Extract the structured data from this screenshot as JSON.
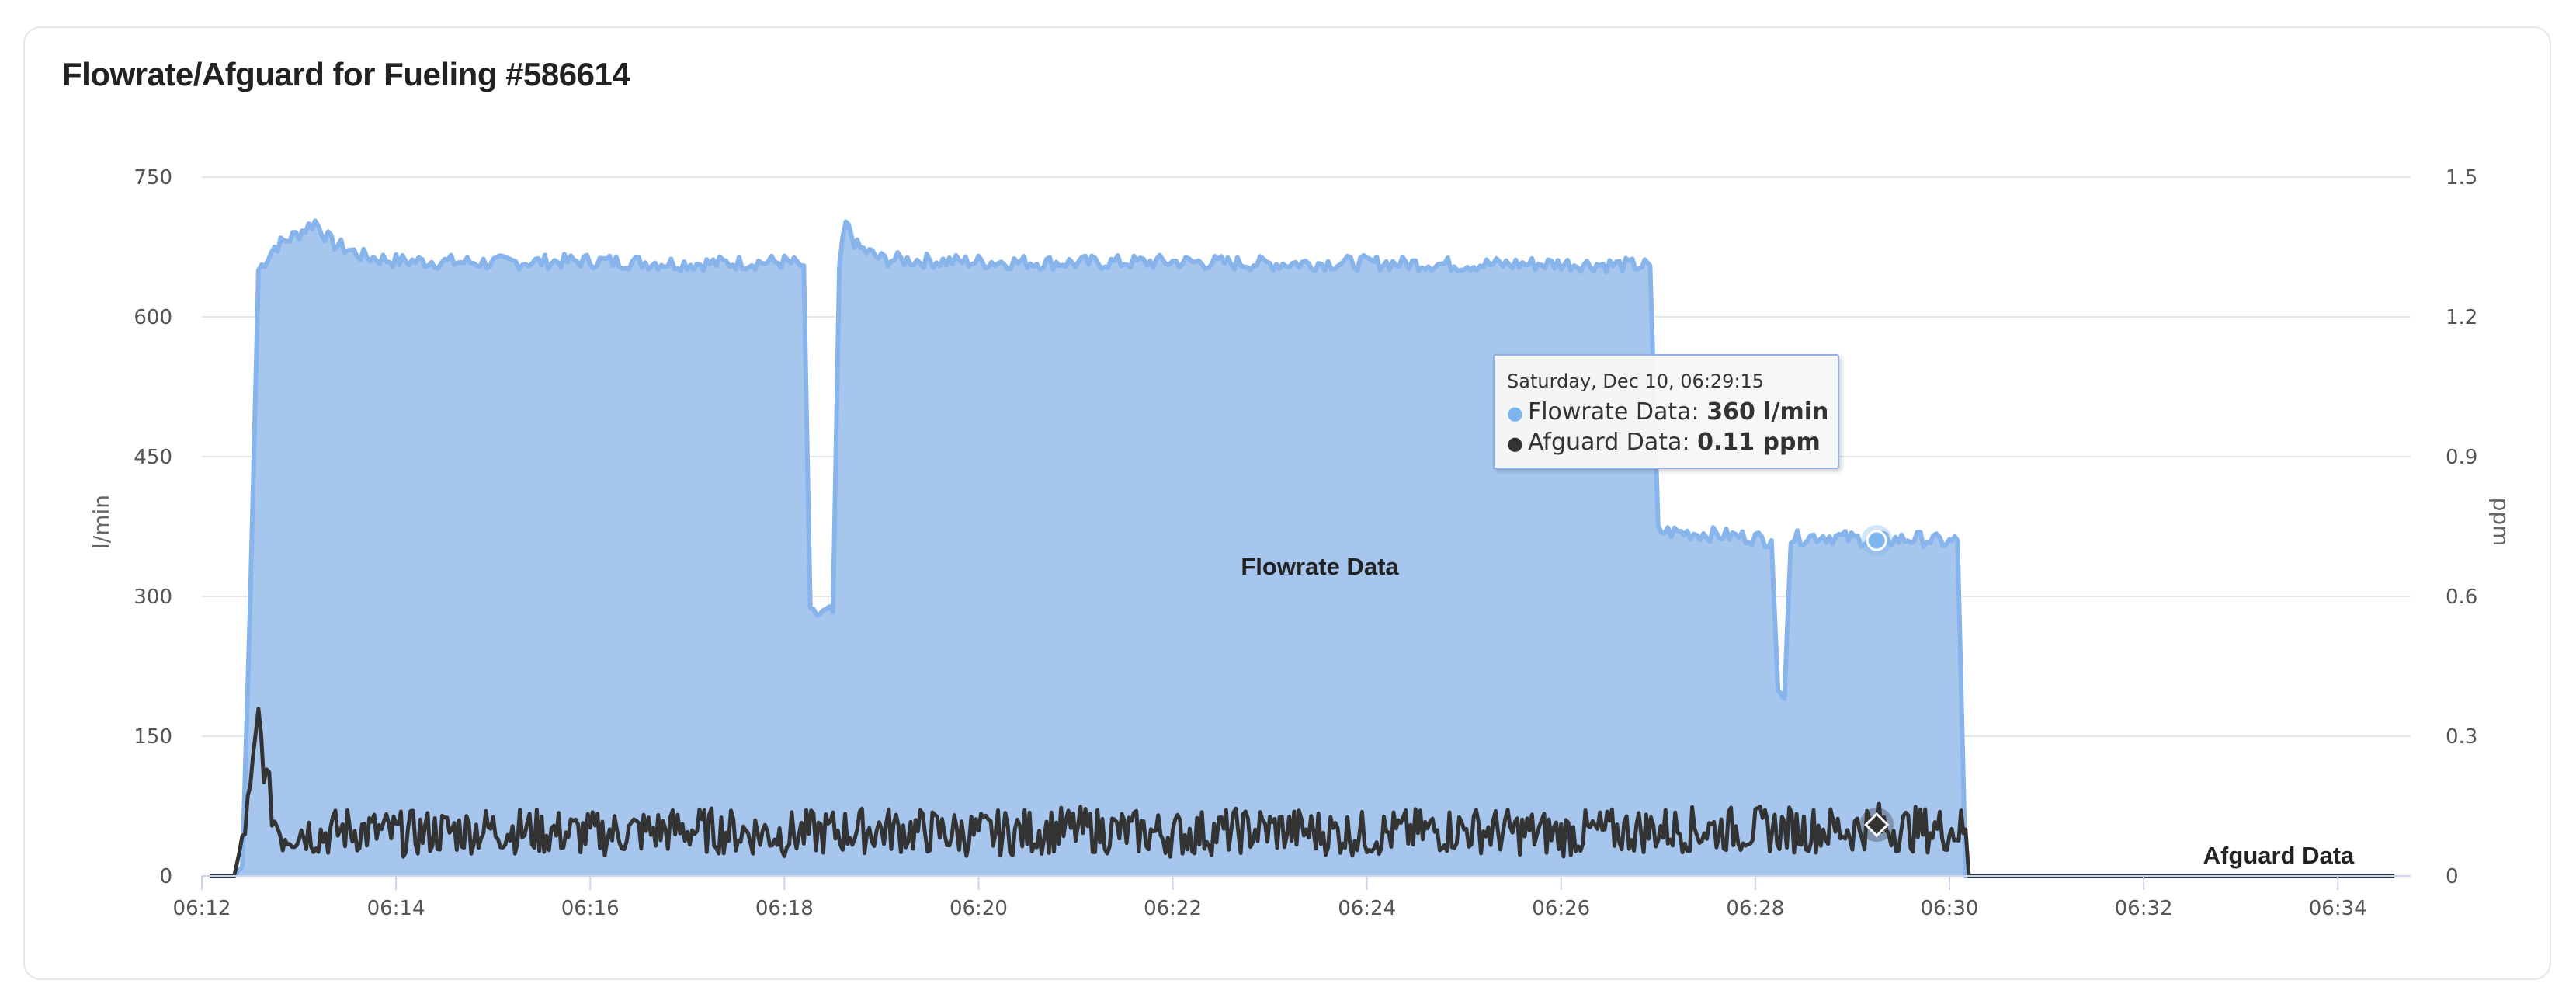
{
  "title": "Flowrate/Afguard for Fueling #586614",
  "tooltip": {
    "header": "Saturday, Dec 10, 06:29:15",
    "rows": [
      {
        "name": "Flowrate Data",
        "value": "360 l/min",
        "color": "#7cb5ec"
      },
      {
        "name": "Afguard Data",
        "value": "0.11 ppm",
        "color": "#333333"
      }
    ]
  },
  "colors": {
    "flowrate_line": "#88b4ec",
    "flowrate_fill": "#a6c6ee",
    "afguard_line": "#333333",
    "grid": "#e6e6e6"
  },
  "chart_data": {
    "type": "area",
    "x_ticks": [
      "06:12",
      "06:14",
      "06:16",
      "06:18",
      "06:20",
      "06:22",
      "06:24",
      "06:26",
      "06:28",
      "06:30",
      "06:32",
      "06:34"
    ],
    "xlim": [
      "06:12",
      "06:34:45"
    ],
    "y_left": {
      "title": "l/min",
      "ticks": [
        0,
        150,
        300,
        450,
        600,
        750
      ],
      "range": [
        0,
        750
      ]
    },
    "y_right": {
      "title": "ppm",
      "ticks": [
        "0",
        "0.3",
        "0.6",
        "0.9",
        "1.2",
        "1.5"
      ],
      "range": [
        0,
        1.5
      ]
    },
    "series": [
      {
        "name": "Flowrate Data",
        "axis": "left",
        "type": "area",
        "color": "#7cb5ec",
        "x": [
          "06:12:05",
          "06:12:20",
          "06:12:25",
          "06:12:30",
          "06:12:35",
          "06:12:45",
          "06:13:00",
          "06:13:10",
          "06:13:20",
          "06:13:40",
          "06:14:00",
          "06:15:00",
          "06:16:00",
          "06:17:00",
          "06:18:00",
          "06:18:12",
          "06:18:16",
          "06:18:30",
          "06:18:34",
          "06:18:38",
          "06:18:45",
          "06:19:00",
          "06:19:30",
          "06:20:00",
          "06:21:00",
          "06:22:00",
          "06:23:00",
          "06:24:00",
          "06:25:00",
          "06:26:00",
          "06:26:50",
          "06:26:55",
          "06:27:00",
          "06:27:30",
          "06:28:00",
          "06:28:10",
          "06:28:14",
          "06:28:18",
          "06:28:22",
          "06:28:40",
          "06:29:15",
          "06:29:40",
          "06:30:00",
          "06:30:05",
          "06:30:10",
          "06:30:30",
          "06:31:00",
          "06:32:00",
          "06:33:00",
          "06:34:00",
          "06:34:35"
        ],
        "values": [
          0,
          0,
          10,
          300,
          650,
          675,
          690,
          702,
          680,
          665,
          660,
          658,
          660,
          657,
          659,
          655,
          280,
          283,
          655,
          700,
          675,
          662,
          660,
          659,
          658,
          659,
          657,
          658,
          656,
          657,
          655,
          655,
          370,
          367,
          363,
          360,
          200,
          190,
          362,
          365,
          360,
          362,
          358,
          360,
          0,
          0,
          0,
          0,
          0,
          0,
          0
        ]
      },
      {
        "name": "Afguard Data",
        "axis": "right",
        "type": "line",
        "color": "#333333",
        "x": [
          "06:12:05",
          "06:12:20",
          "06:12:25",
          "06:12:30",
          "06:12:35",
          "06:12:40",
          "06:12:45",
          "06:12:50",
          "06:13:00",
          "06:13:15",
          "06:13:30",
          "06:14:00",
          "06:15:00",
          "06:16:00",
          "06:17:00",
          "06:18:00",
          "06:19:00",
          "06:20:00",
          "06:21:00",
          "06:22:00",
          "06:23:00",
          "06:24:00",
          "06:25:00",
          "06:26:00",
          "06:27:00",
          "06:28:00",
          "06:29:00",
          "06:29:15",
          "06:29:30",
          "06:30:00",
          "06:30:10",
          "06:30:12",
          "06:31:00",
          "06:32:00",
          "06:33:00",
          "06:34:00",
          "06:34:35"
        ],
        "values": [
          0,
          0,
          0.08,
          0.17,
          0.34,
          0.2,
          0.12,
          0.09,
          0.1,
          0.09,
          0.1,
          0.09,
          0.1,
          0.09,
          0.1,
          0.09,
          0.1,
          0.09,
          0.1,
          0.09,
          0.1,
          0.09,
          0.1,
          0.09,
          0.1,
          0.1,
          0.1,
          0.11,
          0.1,
          0.1,
          0.1,
          0,
          0,
          0,
          0,
          0,
          0
        ]
      }
    ],
    "series_labels": [
      "Flowrate Data",
      "Afguard Data"
    ],
    "highlight_x": "06:29:15",
    "highlight_values": {
      "Flowrate Data": 360,
      "Afguard Data": 0.11
    },
    "grid": true,
    "legend": "none"
  }
}
